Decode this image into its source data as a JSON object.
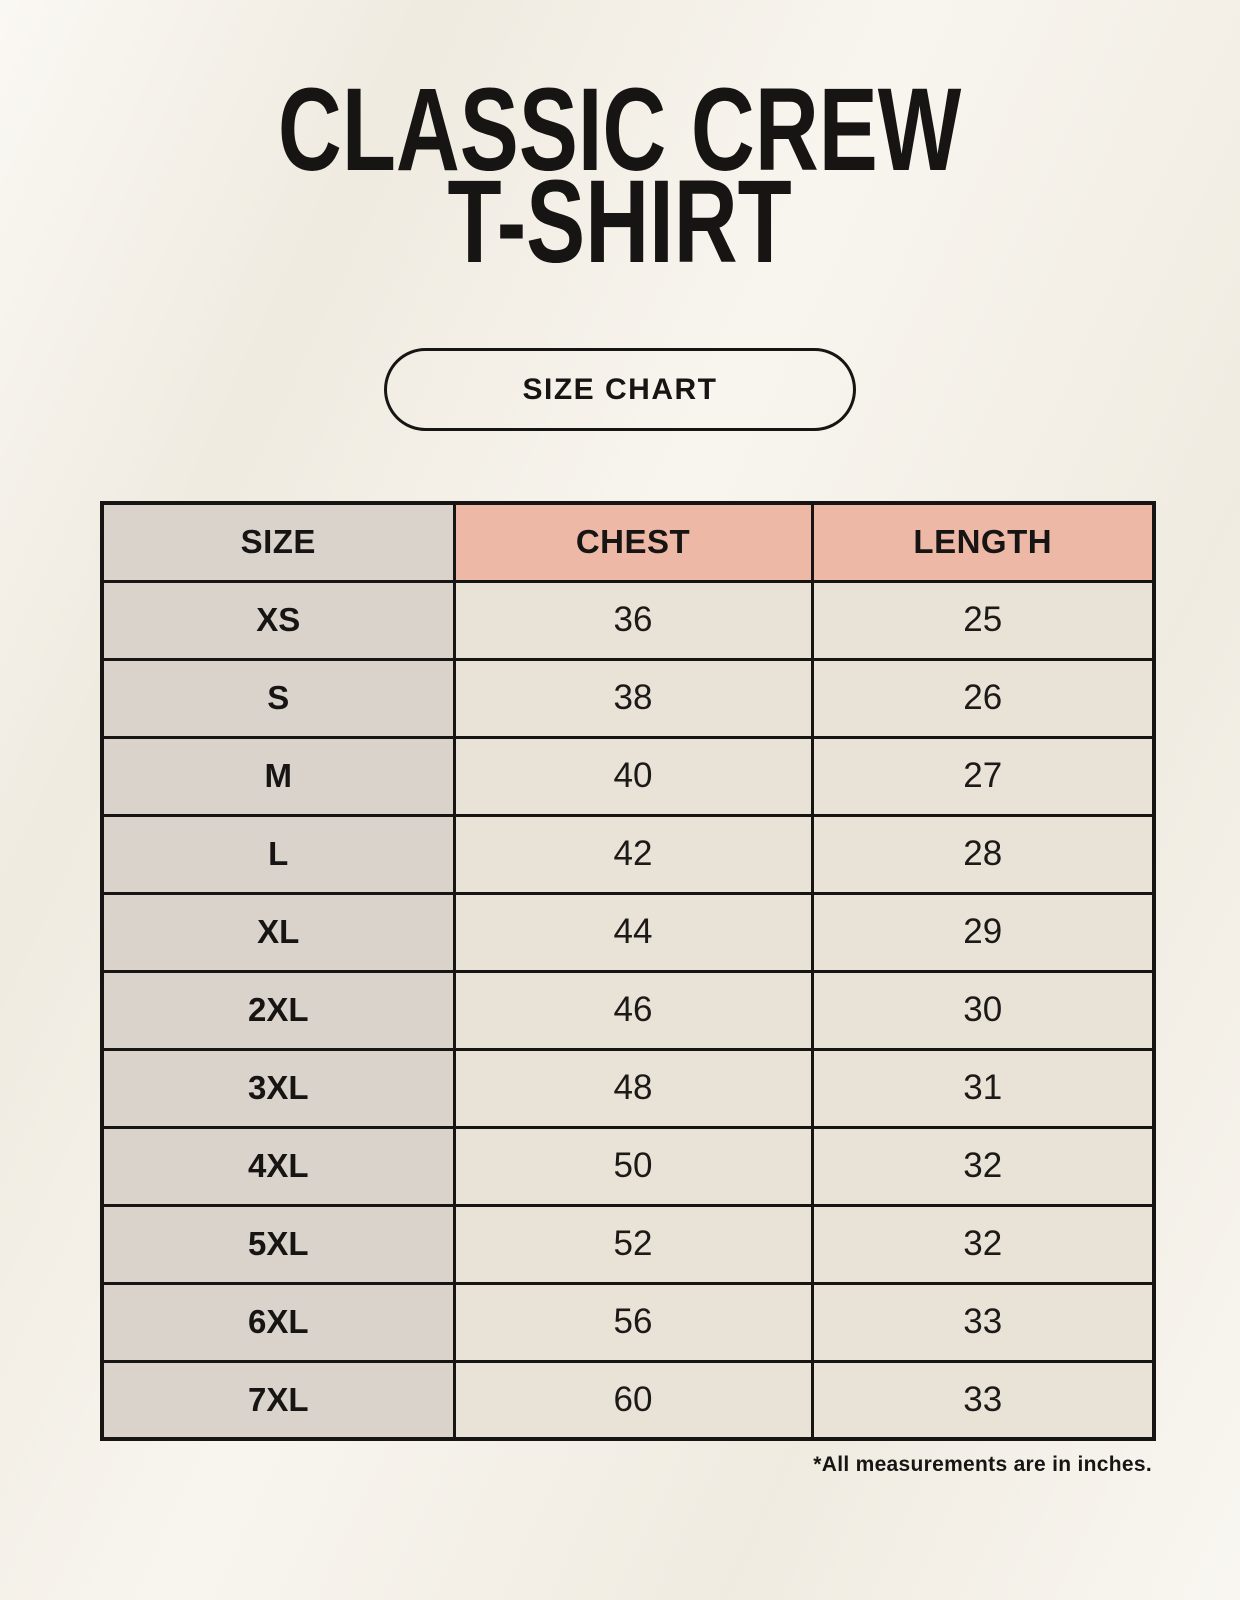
{
  "page": {
    "title_line1": "CLASSIC CREW",
    "title_line2": "T-SHIRT",
    "badge_label": "SIZE CHART",
    "footnote": "*All measurements are in inches."
  },
  "colors": {
    "background": "#f5f1e8",
    "size_column_bg": "#dad3cc",
    "header_accent_bg": "#eeb8a6",
    "data_cell_bg": "#e9e2d6",
    "border": "#171514",
    "text": "#171514"
  },
  "chart_data": {
    "type": "table",
    "title": "CLASSIC CREW T-SHIRT",
    "columns": [
      "SIZE",
      "CHEST",
      "LENGTH"
    ],
    "rows": [
      [
        "XS",
        "36",
        "25"
      ],
      [
        "S",
        "38",
        "26"
      ],
      [
        "M",
        "40",
        "27"
      ],
      [
        "L",
        "42",
        "28"
      ],
      [
        "XL",
        "44",
        "29"
      ],
      [
        "2XL",
        "46",
        "30"
      ],
      [
        "3XL",
        "48",
        "31"
      ],
      [
        "4XL",
        "50",
        "32"
      ],
      [
        "5XL",
        "52",
        "32"
      ],
      [
        "6XL",
        "56",
        "33"
      ],
      [
        "7XL",
        "60",
        "33"
      ]
    ],
    "note": "*All measurements are in inches."
  }
}
